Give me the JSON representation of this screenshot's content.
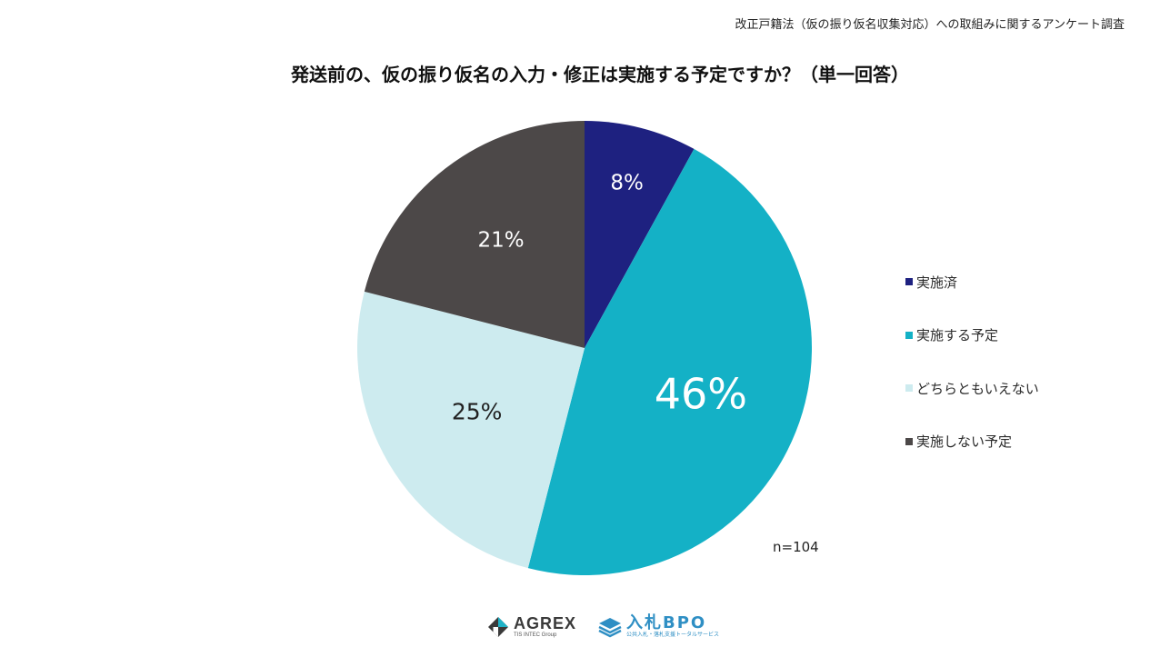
{
  "header": {
    "survey_name": "改正戸籍法（仮の振り仮名収集対応）への取組みに関するアンケート調査"
  },
  "chart_data": {
    "type": "pie",
    "title": "発送前の、仮の振り仮名の入力・修正は実施する予定ですか？（単一回答）",
    "categories": [
      "実施済",
      "実施する予定",
      "どちらともいえない",
      "実施しない予定"
    ],
    "values": [
      8,
      46,
      25,
      21
    ],
    "labels": [
      "8%",
      "46%",
      "25%",
      "21%"
    ],
    "colors": [
      "#1e2180",
      "#14b1c6",
      "#cdebef",
      "#4c4848"
    ],
    "label_colors": [
      "#ffffff",
      "#ffffff",
      "#222222",
      "#ffffff"
    ],
    "start_angle": "12 o'clock, clockwise",
    "legend_position": "right",
    "sample_size": "n=104"
  },
  "footer": {
    "logo_agrex_name": "AGREX",
    "logo_agrex_sub": "TIS INTEC Group",
    "logo_bpo_name": "入札BPO",
    "logo_bpo_sub": "公共入札・落札支援トータルサービス"
  }
}
